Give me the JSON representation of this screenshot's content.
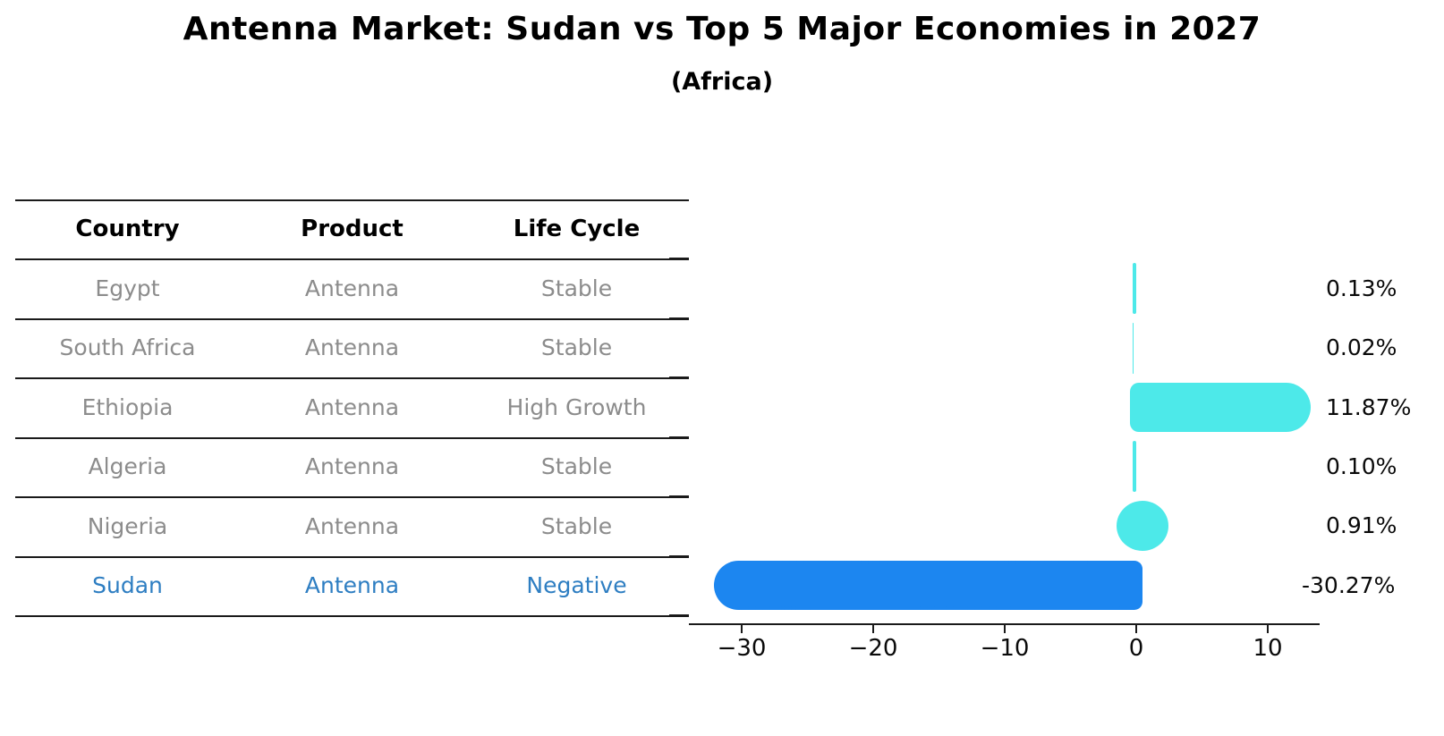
{
  "title": "Antenna Market: Sudan vs Top 5 Major Economies in 2027",
  "subtitle": "(Africa)",
  "table": {
    "headers": [
      "Country",
      "Product",
      "Life Cycle"
    ],
    "rows": [
      {
        "country": "Egypt",
        "product": "Antenna",
        "life_cycle": "Stable",
        "highlight": false
      },
      {
        "country": "South Africa",
        "product": "Antenna",
        "life_cycle": "Stable",
        "highlight": false
      },
      {
        "country": "Ethiopia",
        "product": "Antenna",
        "life_cycle": "High Growth",
        "highlight": false
      },
      {
        "country": "Algeria",
        "product": "Antenna",
        "life_cycle": "Stable",
        "highlight": false
      },
      {
        "country": "Nigeria",
        "product": "Antenna",
        "life_cycle": "Stable",
        "highlight": false
      },
      {
        "country": "Sudan",
        "product": "Antenna",
        "life_cycle": "Negative",
        "highlight": true
      }
    ]
  },
  "chart_data": {
    "type": "bar",
    "orientation": "horizontal",
    "title": "Antenna Market: Sudan vs Top 5 Major Economies in 2027",
    "subtitle": "(Africa)",
    "categories": [
      "Egypt",
      "South Africa",
      "Ethiopia",
      "Algeria",
      "Nigeria",
      "Sudan"
    ],
    "values": [
      0.13,
      0.02,
      11.87,
      0.1,
      0.91,
      -30.27
    ],
    "value_labels": [
      "0.13%",
      "0.02%",
      "11.87%",
      "0.10%",
      "0.91%",
      "-30.27%"
    ],
    "x_tick_values": [
      -30,
      -20,
      -10,
      0,
      10
    ],
    "x_ticks": [
      "−30",
      "−20",
      "−10",
      "0",
      "10"
    ],
    "xlim": [
      -32.5,
      13.9
    ],
    "grid": false,
    "legend": "none",
    "bar_color": "#4de9e9",
    "highlight_bar_color": "#1c86f0",
    "highlight_index": 5
  },
  "colors": {
    "background": "#ffffff",
    "table_line": "#1a1a1a",
    "header_text": "#000000",
    "cell_text": "#8c8c8c",
    "highlight_text": "#2e7ec2",
    "bar_cyan": "#4de9e9",
    "bar_blue": "#1c86f0"
  }
}
